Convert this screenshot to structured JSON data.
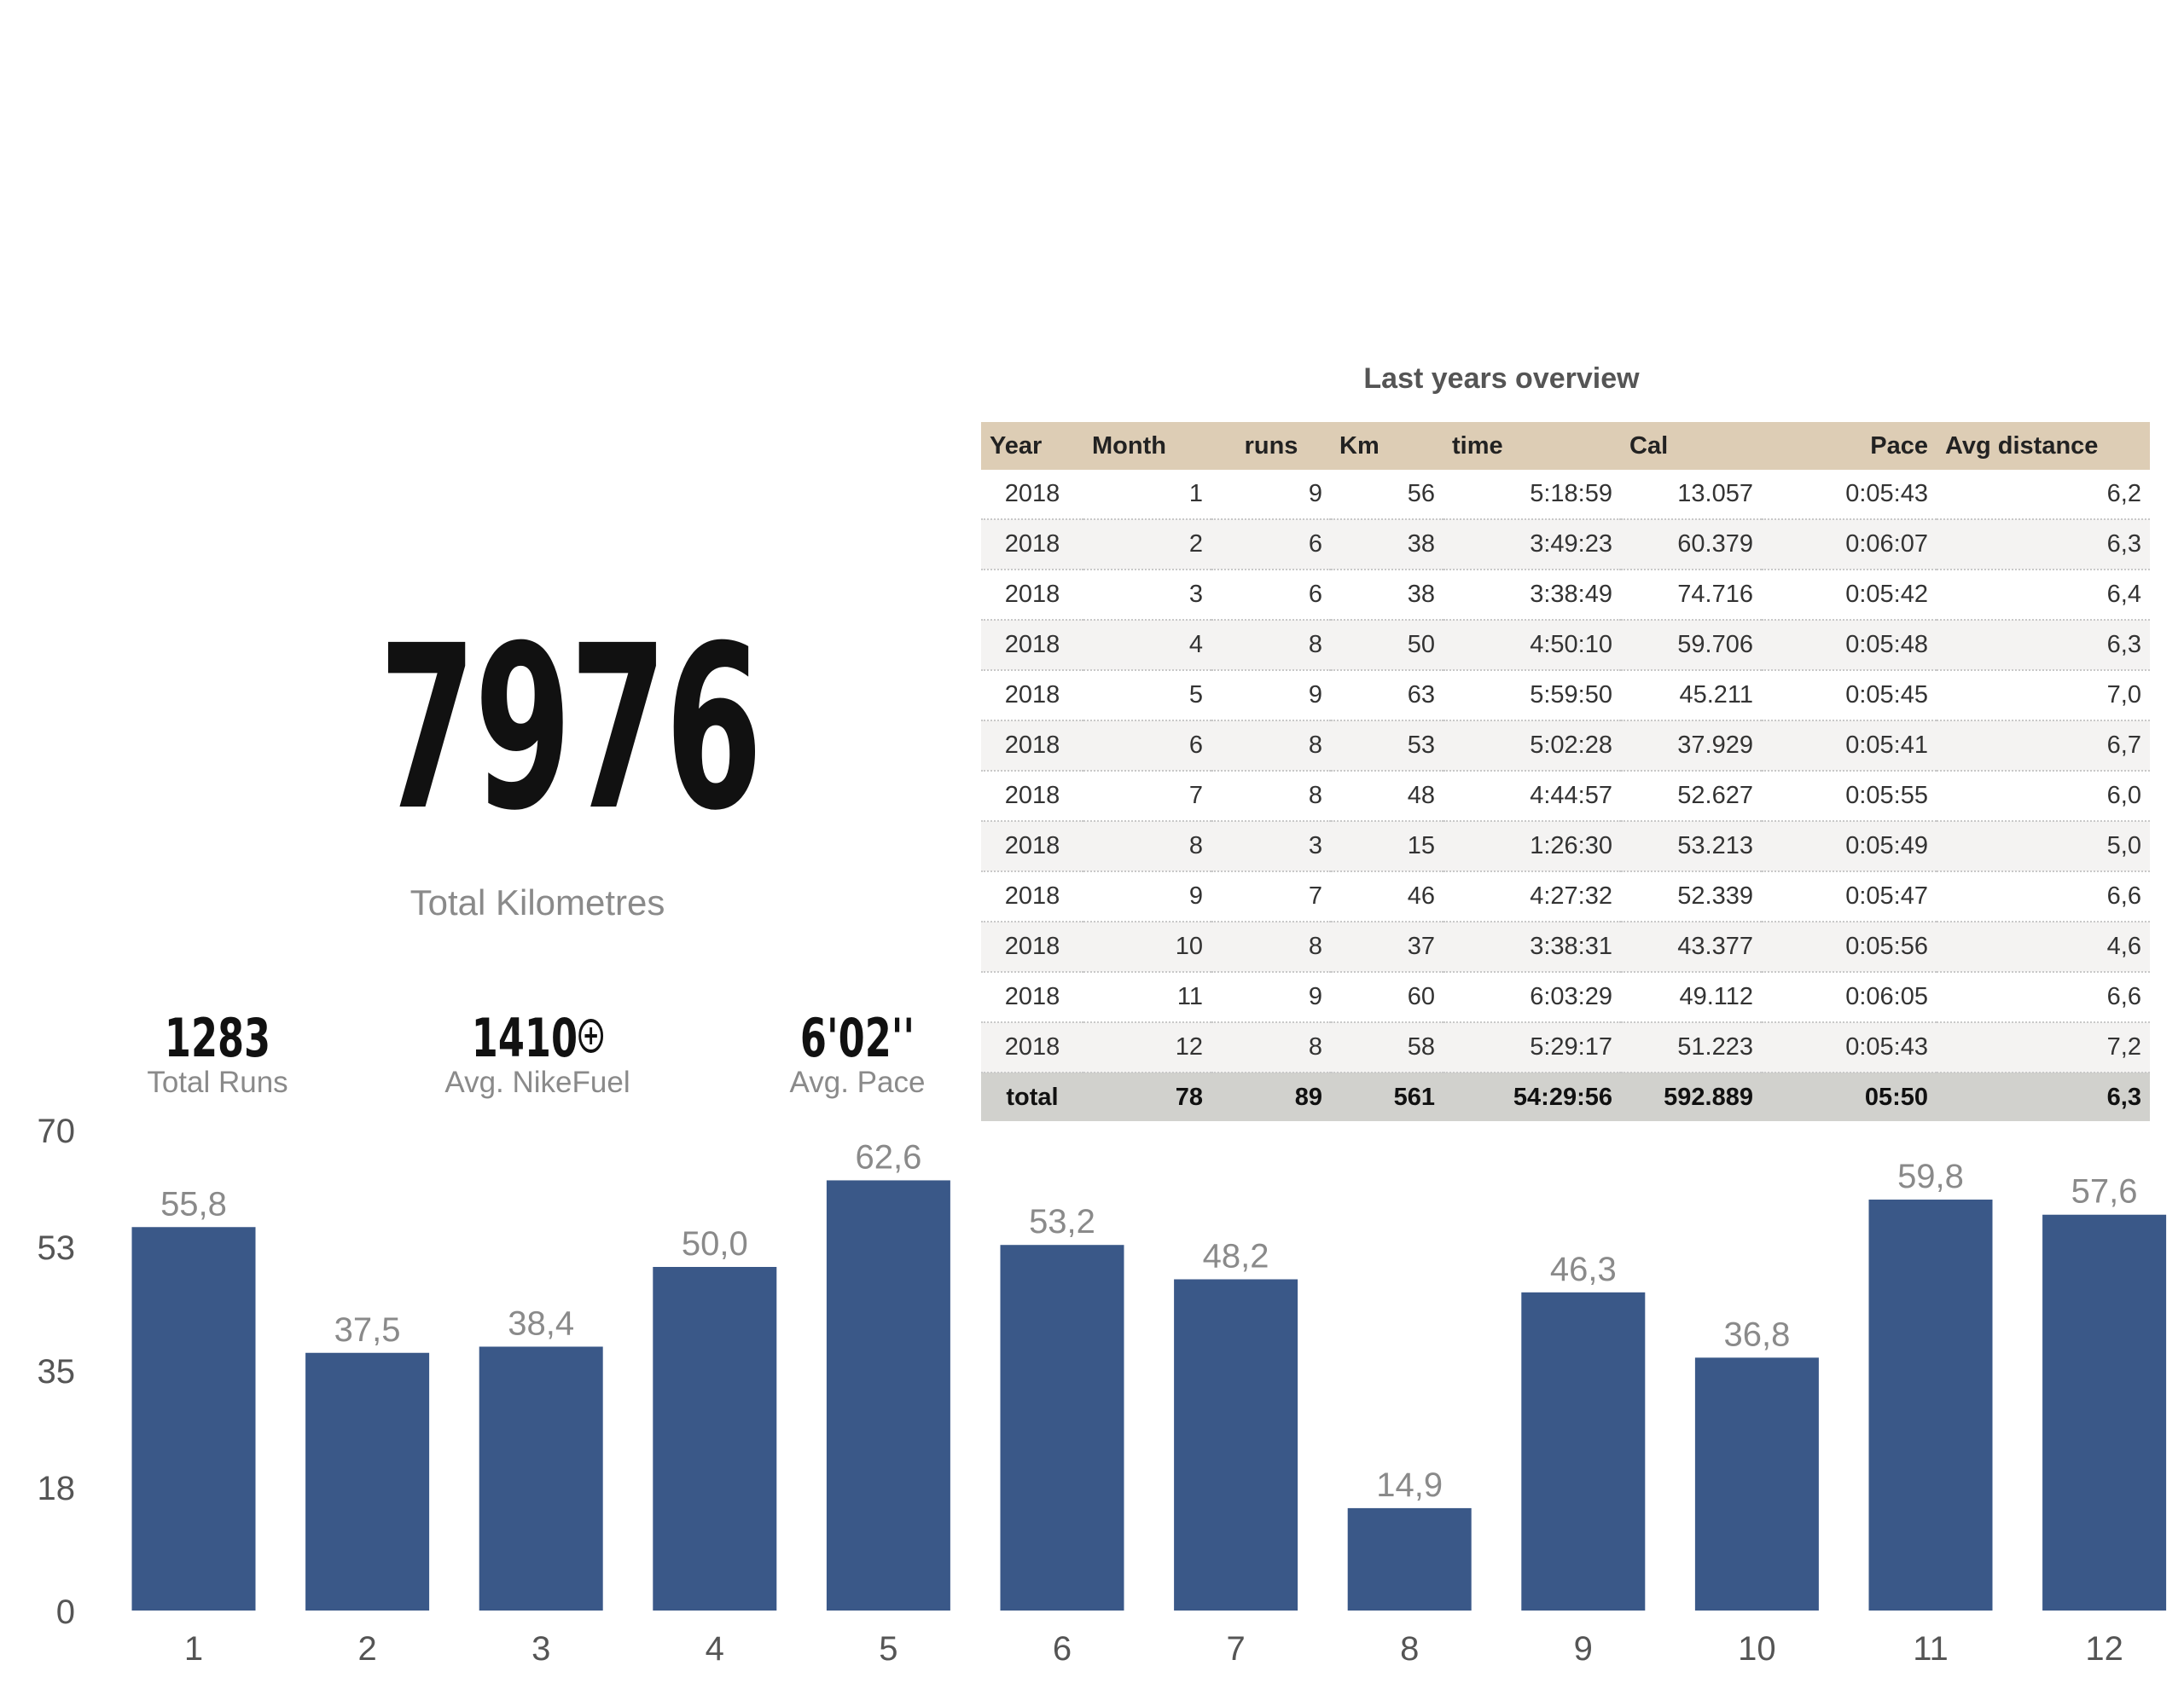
{
  "summary": {
    "total_km": "7976",
    "total_km_label": "Total Kilometres",
    "total_runs": "1283",
    "total_runs_label": "Total Runs",
    "avg_fuel": "1410",
    "avg_fuel_label": "Avg. NikeFuel",
    "avg_fuel_icon": "nikefuel-plus-icon",
    "avg_pace": "6'02''",
    "avg_pace_label": "Avg. Pace"
  },
  "overview": {
    "title": "Last years overview",
    "columns": [
      "Year",
      "Month",
      "runs",
      "Km",
      "time",
      "Cal",
      "Pace",
      "Avg distance"
    ],
    "rows": [
      [
        "2018",
        "1",
        "9",
        "56",
        "5:18:59",
        "13.057",
        "0:05:43",
        "6,2"
      ],
      [
        "2018",
        "2",
        "6",
        "38",
        "3:49:23",
        "60.379",
        "0:06:07",
        "6,3"
      ],
      [
        "2018",
        "3",
        "6",
        "38",
        "3:38:49",
        "74.716",
        "0:05:42",
        "6,4"
      ],
      [
        "2018",
        "4",
        "8",
        "50",
        "4:50:10",
        "59.706",
        "0:05:48",
        "6,3"
      ],
      [
        "2018",
        "5",
        "9",
        "63",
        "5:59:50",
        "45.211",
        "0:05:45",
        "7,0"
      ],
      [
        "2018",
        "6",
        "8",
        "53",
        "5:02:28",
        "37.929",
        "0:05:41",
        "6,7"
      ],
      [
        "2018",
        "7",
        "8",
        "48",
        "4:44:57",
        "52.627",
        "0:05:55",
        "6,0"
      ],
      [
        "2018",
        "8",
        "3",
        "15",
        "1:26:30",
        "53.213",
        "0:05:49",
        "5,0"
      ],
      [
        "2018",
        "9",
        "7",
        "46",
        "4:27:32",
        "52.339",
        "0:05:47",
        "6,6"
      ],
      [
        "2018",
        "10",
        "8",
        "37",
        "3:38:31",
        "43.377",
        "0:05:56",
        "4,6"
      ],
      [
        "2018",
        "11",
        "9",
        "60",
        "6:03:29",
        "49.112",
        "0:06:05",
        "6,6"
      ],
      [
        "2018",
        "12",
        "8",
        "58",
        "5:29:17",
        "51.223",
        "0:05:43",
        "7,2"
      ]
    ],
    "total": [
      "total",
      "78",
      "89",
      "561",
      "54:29:56",
      "592.889",
      "05:50",
      "6,3"
    ]
  },
  "chart_data": {
    "type": "bar",
    "categories": [
      "1",
      "2",
      "3",
      "4",
      "5",
      "6",
      "7",
      "8",
      "9",
      "10",
      "11",
      "12"
    ],
    "values": [
      55.8,
      37.5,
      38.4,
      50.0,
      62.6,
      53.2,
      48.2,
      14.9,
      46.3,
      36.8,
      59.8,
      57.6
    ],
    "value_labels": [
      "55,8",
      "37,5",
      "38,4",
      "50,0",
      "62,6",
      "53,2",
      "48,2",
      "14,9",
      "46,3",
      "36,8",
      "59,8",
      "57,6"
    ],
    "yticks": [
      0,
      18,
      35,
      53,
      70
    ],
    "ytick_labels": [
      "0",
      "18",
      "35",
      "53",
      "70"
    ],
    "ylim": [
      0,
      70
    ],
    "bar_color": "#3a5888",
    "label_color": "#8a8a8a",
    "grid": false,
    "legend": "none"
  }
}
